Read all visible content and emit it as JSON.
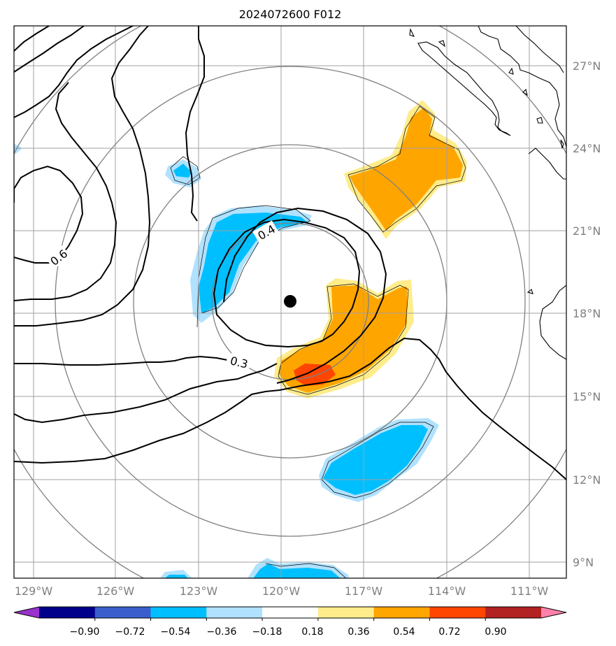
{
  "title": "2024072600 F012",
  "map": {
    "lon_ticks": [
      "129°W",
      "126°W",
      "123°W",
      "120°W",
      "117°W",
      "114°W",
      "111°W"
    ],
    "lat_ticks": [
      "27°N",
      "24°N",
      "21°N",
      "18°N",
      "15°N",
      "12°N",
      "9°N"
    ],
    "storm_center": {
      "lon": "119.7°W",
      "lat": "18.4°N"
    },
    "contour_labels": [
      "0.6",
      "0.4",
      "0.3"
    ],
    "range_rings": 4
  },
  "colorbar": {
    "tick_labels": [
      "−0.90",
      "−0.72",
      "−0.54",
      "−0.36",
      "−0.18",
      "0.18",
      "0.36",
      "0.54",
      "0.72",
      "0.90"
    ],
    "colors": [
      "#9932cc",
      "#00008b",
      "#3a5fcd",
      "#00bfff",
      "#b0e2ff",
      "#ffffff",
      "#ffec8b",
      "#ffa500",
      "#ff4500",
      "#b22222",
      "#ff82ab"
    ]
  }
}
